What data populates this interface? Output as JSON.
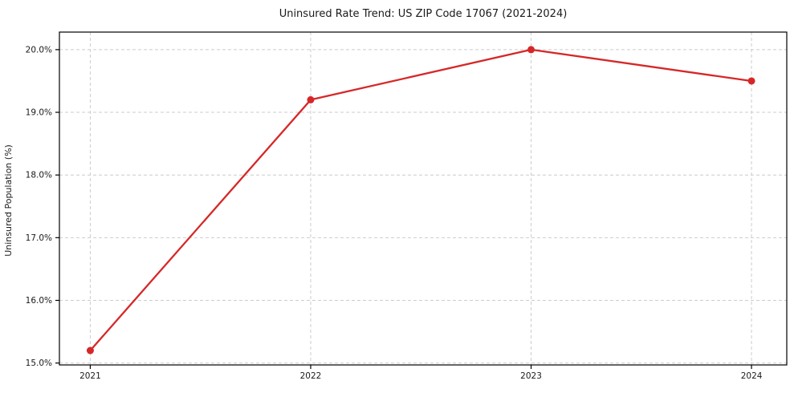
{
  "chart_data": {
    "type": "line",
    "title": "Uninsured Rate Trend: US ZIP Code 17067 (2021-2024)",
    "xlabel": "",
    "ylabel": "Uninsured Population (%)",
    "categories": [
      2021,
      2022,
      2023,
      2024
    ],
    "xtick_labels": [
      "2021",
      "2022",
      "2023",
      "2024"
    ],
    "series": [
      {
        "name": "Uninsured Rate",
        "values": [
          15.2,
          19.2,
          20.0,
          19.5
        ],
        "color": "#d62728",
        "marker": "circle"
      }
    ],
    "yticks": [
      15.0,
      16.0,
      17.0,
      18.0,
      19.0,
      20.0
    ],
    "ytick_labels": [
      "15.0%",
      "16.0%",
      "17.0%",
      "18.0%",
      "19.0%",
      "20.0%"
    ],
    "ylim": [
      14.97,
      20.28
    ],
    "xlim": [
      2020.86,
      2024.16
    ],
    "grid": true,
    "grid_style": "dashed",
    "legend_position": "none",
    "colors": {
      "line": "#d62728",
      "grid": "#cccccc",
      "axis": "#000000",
      "text": "#1a1a1a",
      "background": "#ffffff"
    }
  }
}
